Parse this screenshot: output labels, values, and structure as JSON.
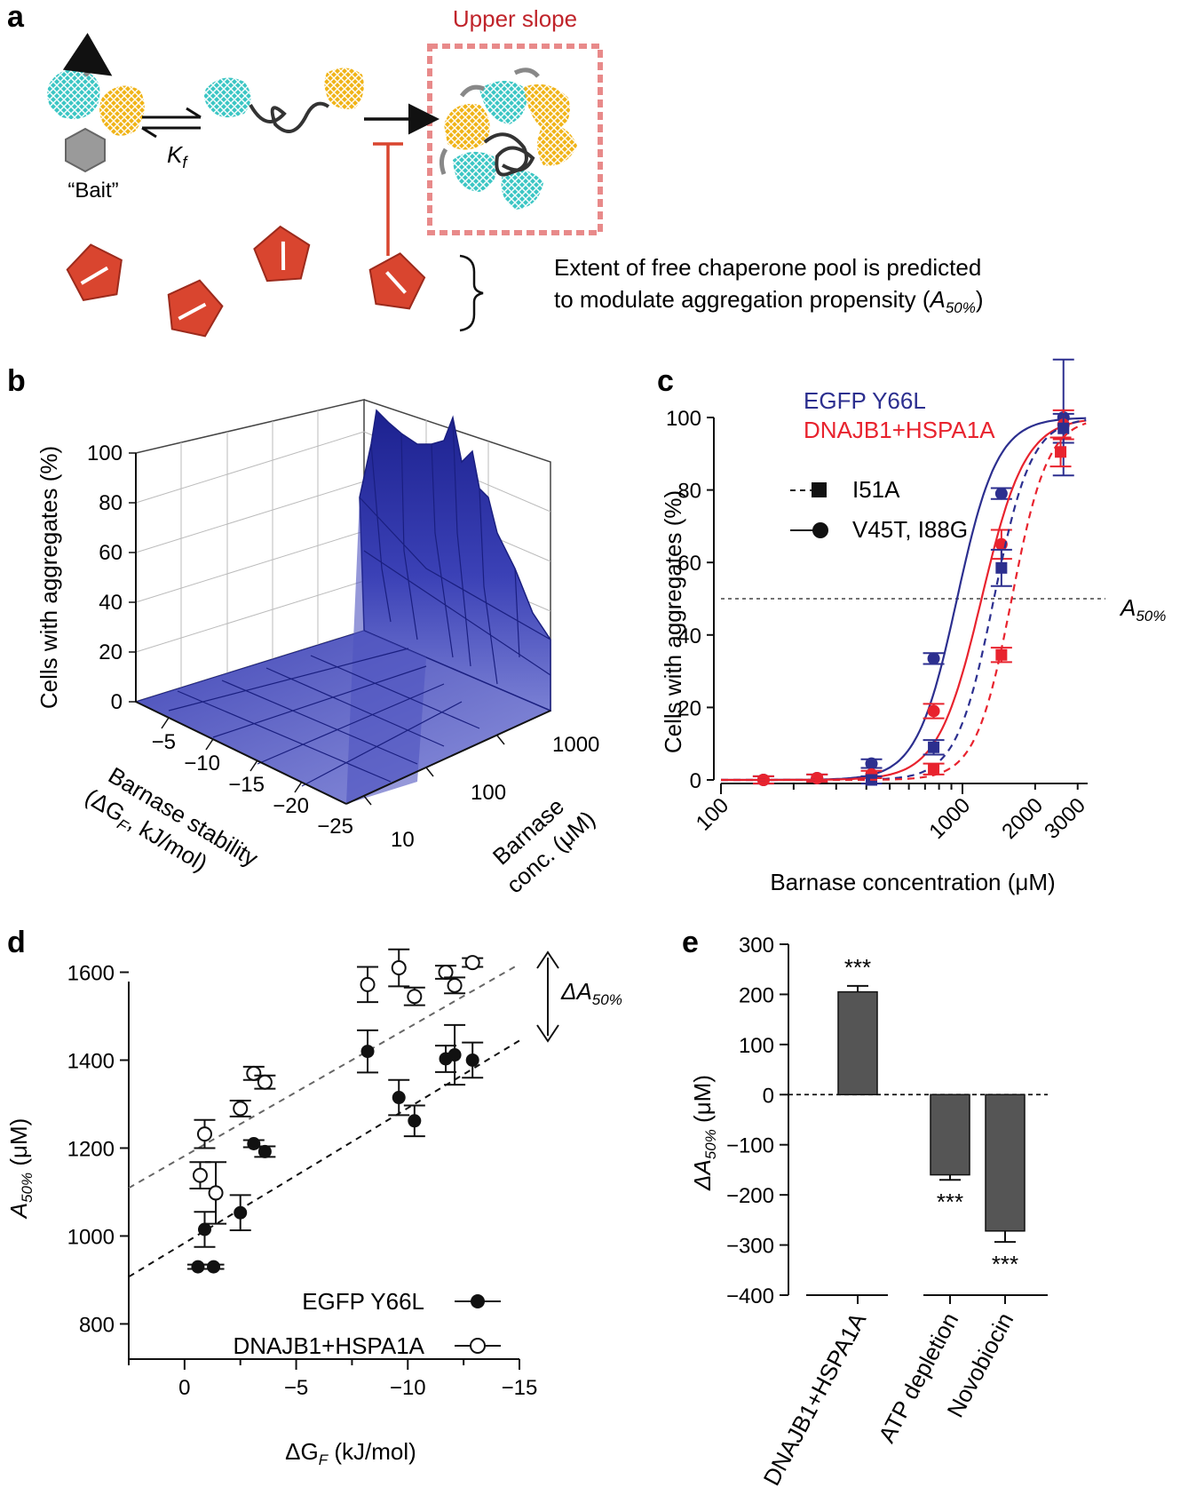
{
  "panel_a": {
    "letter": "a",
    "upper_slope": "Upper slope",
    "bait": "“Bait”",
    "kf_k": "K",
    "kf_f": "f",
    "pool_line1": "Extent of free chaperone pool is predicted",
    "pool_line2_prefix": "to modulate aggregation propensity (",
    "pool_line2_a": "A",
    "pool_line2_sub": "50%",
    "pool_line2_suffix": ")",
    "colors": {
      "cyan": "#3cc6c4",
      "yellow": "#f0b419",
      "chaperone": "#d9452f",
      "frame": "#e88a8a",
      "inhibit": "#d9452f"
    }
  },
  "chart_data": [
    {
      "panel": "b",
      "type": "surface3d",
      "letter": "b",
      "zlabel": "Cells with aggregates (%)",
      "xlabel_line1": "Barnase stability",
      "xlabel_line2": "(ΔG",
      "xlabel_sub": "F",
      "xlabel_line2_end": ", kJ/mol)",
      "ylabel_line1": "Barnase",
      "ylabel_line2": "conc. (μM)",
      "z_ticks": [
        "0",
        "20",
        "40",
        "60",
        "80",
        "100"
      ],
      "x_ticks": [
        "−5",
        "−10",
        "−15",
        "−20",
        "−25"
      ],
      "y_ticks": [
        "10",
        "100",
        "1000"
      ],
      "xlim": [
        0,
        -28
      ],
      "ylim_log": [
        5,
        3000
      ],
      "zlim": [
        0,
        100
      ],
      "surface_color": "#3a40b8"
    },
    {
      "panel": "c",
      "type": "line",
      "letter": "c",
      "title_series": [
        "EGFP Y66L",
        "DNAJB1+HSPA1A"
      ],
      "title_colors": [
        "#2c2f8f",
        "#e8232e"
      ],
      "legend": [
        "I51A",
        "V45T, I88G"
      ],
      "xlabel": "Barnase concentration (μM)",
      "ylabel": "Cells with aggregates (%)",
      "x_scale": "log",
      "xlim": [
        100,
        3300
      ],
      "ylim": [
        0,
        100
      ],
      "x_ticks": [
        "100",
        "1000",
        "2000",
        "3000"
      ],
      "y_ticks": [
        "0",
        "20",
        "40",
        "60",
        "80",
        "100"
      ],
      "threshold_label_a": "A",
      "threshold_label_sub": "50%",
      "threshold_value": 50,
      "series": [
        {
          "name": "EGFP Y66L V45T, I88G",
          "color": "#2c2f8f",
          "style": "solid",
          "marker": "circle",
          "a50": 950,
          "hill": 5.2,
          "x": [
            150,
            250,
            420,
            760,
            1450,
            2620
          ],
          "y": [
            0,
            0.5,
            4.5,
            33.5,
            79,
            100
          ],
          "err": [
            1,
            1,
            1.2,
            1.5,
            1.5,
            16
          ]
        },
        {
          "name": "DNAJB1+HSPA1A V45T, I88G",
          "color": "#e8232e",
          "style": "solid",
          "marker": "circle",
          "a50": 1200,
          "hill": 4.8,
          "x": [
            150,
            250,
            420,
            760,
            1450,
            2620
          ],
          "y": [
            0,
            0.5,
            1.5,
            19,
            65,
            98
          ],
          "err": [
            1,
            1,
            1,
            2,
            4,
            4
          ]
        },
        {
          "name": "EGFP Y66L I51A",
          "color": "#2c2f8f",
          "style": "dashed",
          "marker": "square",
          "a50": 1350,
          "hill": 5.6,
          "x": [
            420,
            760,
            1450,
            2620
          ],
          "y": [
            0,
            9,
            58.5,
            97
          ],
          "err": [
            1,
            2,
            5,
            4
          ]
        },
        {
          "name": "DNAJB1+HSPA1A I51A",
          "color": "#e8232e",
          "style": "dashed",
          "marker": "square",
          "a50": 1600,
          "hill": 5.8,
          "x": [
            760,
            1450,
            2550
          ],
          "y": [
            3,
            34.5,
            90.5
          ],
          "err": [
            1.5,
            2,
            4
          ]
        }
      ]
    },
    {
      "panel": "d",
      "type": "scatter",
      "letter": "d",
      "xlabel_a": "ΔG",
      "xlabel_sub": "F",
      "xlabel_end": " (kJ/mol)",
      "ylabel_a": "A",
      "ylabel_sub": "50%",
      "ylabel_end": " (μM)",
      "delta_label_a": "ΔA",
      "delta_label_sub": "50%",
      "xlim": [
        2.5,
        -15
      ],
      "ylim": [
        720,
        1700
      ],
      "x_ticks": [
        "0",
        "−5",
        "−10",
        "−15"
      ],
      "y_ticks": [
        "800",
        "1000",
        "1200",
        "1400",
        "1600"
      ],
      "legend": [
        "EGFP Y66L",
        "DNAJB1+HSPA1A"
      ],
      "series": [
        {
          "name": "EGFP Y66L",
          "fill": "filled",
          "x": [
            -0.9,
            -0.6,
            -1.3,
            -2.5,
            -3.1,
            -3.6,
            -8.2,
            -9.6,
            -10.3,
            -11.7,
            -12.1,
            -12.9
          ],
          "y": [
            1015,
            930,
            930,
            1053,
            1210,
            1192,
            1420,
            1315,
            1262,
            1403,
            1412,
            1400
          ],
          "err": [
            40,
            5,
            5,
            40,
            8,
            12,
            48,
            40,
            35,
            30,
            68,
            40
          ]
        },
        {
          "name": "DNAJB1+HSPA1A",
          "fill": "open",
          "x": [
            -0.9,
            -0.7,
            -1.4,
            -2.5,
            -3.1,
            -3.6,
            -8.2,
            -9.6,
            -10.3,
            -11.7,
            -12.1,
            -12.9
          ],
          "y": [
            1232,
            1138,
            1098,
            1290,
            1370,
            1350,
            1572,
            1610,
            1545,
            1600,
            1570,
            1622
          ],
          "err": [
            32,
            30,
            70,
            18,
            15,
            15,
            40,
            42,
            20,
            15,
            18,
            10
          ]
        }
      ],
      "fit_lines": [
        {
          "name": "EGFP Y66L fit",
          "color": "#111111",
          "slope": -30.7,
          "intercept": 984
        },
        {
          "name": "DNAJB1+HSPA1A fit",
          "color": "#666666",
          "slope": -29.1,
          "intercept": 1182
        }
      ]
    },
    {
      "panel": "e",
      "type": "bar",
      "letter": "e",
      "ylabel_a": "ΔA",
      "ylabel_sub": "50%",
      "ylabel_end": " (μM)",
      "categories": [
        "DNAJB1+HSPA1A",
        "ATP depletion",
        "Novobiocin"
      ],
      "values": [
        205,
        -160,
        -272
      ],
      "errors": [
        12,
        10,
        22
      ],
      "significance": [
        "***",
        "***",
        "***"
      ],
      "ylim": [
        -400,
        300
      ],
      "y_ticks": [
        "300",
        "200",
        "100",
        "0",
        "−100",
        "−200",
        "−300",
        "−400"
      ],
      "bar_color": "#555555"
    }
  ]
}
